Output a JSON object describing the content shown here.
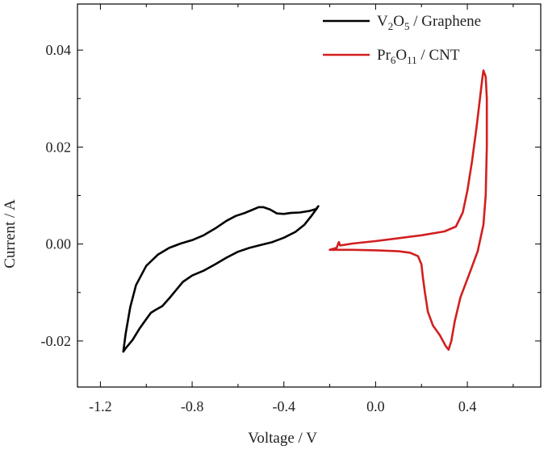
{
  "chart_data": {
    "type": "line",
    "title": "",
    "xlabel": "Voltage / V",
    "ylabel": "Current / A",
    "xlim": [
      -1.3,
      0.72
    ],
    "ylim": [
      -0.0295,
      0.0495
    ],
    "xticks": [
      -1.2,
      -0.8,
      -0.4,
      0.0,
      0.4
    ],
    "xtick_labels": [
      "-1.2",
      "-0.8",
      "-0.4",
      "0.0",
      "0.4"
    ],
    "yticks": [
      -0.02,
      0.0,
      0.02,
      0.04
    ],
    "ytick_labels": [
      "-0.02",
      "0.00",
      "0.02",
      "0.04"
    ],
    "grid": false,
    "legend": "top-right",
    "series": [
      {
        "name_parts": [
          [
            "V",
            ""
          ],
          [
            "2",
            "sub"
          ],
          [
            "O",
            ""
          ],
          [
            "5",
            "sub"
          ],
          [
            " / Graphene",
            ""
          ]
        ],
        "color": "#000000",
        "points": [
          [
            -1.1,
            -0.0222
          ],
          [
            -1.09,
            -0.0185
          ],
          [
            -1.07,
            -0.013
          ],
          [
            -1.045,
            -0.0085
          ],
          [
            -1.0,
            -0.0045
          ],
          [
            -0.95,
            -0.0022
          ],
          [
            -0.9,
            -0.0008
          ],
          [
            -0.85,
            0.0001
          ],
          [
            -0.8,
            0.0008
          ],
          [
            -0.75,
            0.0018
          ],
          [
            -0.7,
            0.0032
          ],
          [
            -0.65,
            0.0048
          ],
          [
            -0.61,
            0.0058
          ],
          [
            -0.57,
            0.0064
          ],
          [
            -0.54,
            0.007
          ],
          [
            -0.51,
            0.0076
          ],
          [
            -0.49,
            0.0076
          ],
          [
            -0.46,
            0.0071
          ],
          [
            -0.43,
            0.0063
          ],
          [
            -0.4,
            0.0062
          ],
          [
            -0.37,
            0.0064
          ],
          [
            -0.33,
            0.0065
          ],
          [
            -0.29,
            0.0068
          ],
          [
            -0.26,
            0.0072
          ],
          [
            -0.25,
            0.0078
          ],
          [
            -0.255,
            0.0074
          ],
          [
            -0.28,
            0.0058
          ],
          [
            -0.31,
            0.004
          ],
          [
            -0.35,
            0.0025
          ],
          [
            -0.4,
            0.0013
          ],
          [
            -0.45,
            0.0004
          ],
          [
            -0.5,
            -0.0002
          ],
          [
            -0.55,
            -0.0008
          ],
          [
            -0.6,
            -0.0016
          ],
          [
            -0.65,
            -0.0028
          ],
          [
            -0.7,
            -0.0042
          ],
          [
            -0.75,
            -0.0055
          ],
          [
            -0.8,
            -0.0065
          ],
          [
            -0.84,
            -0.0078
          ],
          [
            -0.87,
            -0.0095
          ],
          [
            -0.9,
            -0.0112
          ],
          [
            -0.93,
            -0.0128
          ],
          [
            -0.96,
            -0.0136
          ],
          [
            -0.98,
            -0.0142
          ],
          [
            -1.0,
            -0.0155
          ],
          [
            -1.03,
            -0.0175
          ],
          [
            -1.06,
            -0.0198
          ],
          [
            -1.09,
            -0.0215
          ],
          [
            -1.1,
            -0.0222
          ]
        ]
      },
      {
        "name_parts": [
          [
            "Pr",
            ""
          ],
          [
            "6",
            "sub"
          ],
          [
            "O",
            ""
          ],
          [
            "11",
            "sub"
          ],
          [
            " / CNT",
            ""
          ]
        ],
        "color": "#d21f1f",
        "points": [
          [
            -0.2,
            -0.0012
          ],
          [
            -0.17,
            -0.0008
          ],
          [
            -0.16,
            0.0004
          ],
          [
            -0.155,
            -0.0003
          ],
          [
            -0.14,
            -0.0002
          ],
          [
            -0.1,
            0.0001
          ],
          [
            0.0,
            0.0006
          ],
          [
            0.1,
            0.0012
          ],
          [
            0.2,
            0.0018
          ],
          [
            0.3,
            0.0026
          ],
          [
            0.35,
            0.0036
          ],
          [
            0.38,
            0.0065
          ],
          [
            0.4,
            0.011
          ],
          [
            0.42,
            0.017
          ],
          [
            0.44,
            0.024
          ],
          [
            0.455,
            0.03
          ],
          [
            0.465,
            0.034
          ],
          [
            0.47,
            0.0358
          ],
          [
            0.48,
            0.0345
          ],
          [
            0.485,
            0.03
          ],
          [
            0.485,
            0.02
          ],
          [
            0.48,
            0.01
          ],
          [
            0.47,
            0.004
          ],
          [
            0.445,
            -0.0015
          ],
          [
            0.41,
            -0.006
          ],
          [
            0.37,
            -0.011
          ],
          [
            0.345,
            -0.016
          ],
          [
            0.33,
            -0.02
          ],
          [
            0.318,
            -0.0218
          ],
          [
            0.305,
            -0.021
          ],
          [
            0.28,
            -0.0188
          ],
          [
            0.25,
            -0.0168
          ],
          [
            0.228,
            -0.014
          ],
          [
            0.215,
            -0.01
          ],
          [
            0.205,
            -0.0065
          ],
          [
            0.2,
            -0.0042
          ],
          [
            0.185,
            -0.0025
          ],
          [
            0.15,
            -0.0018
          ],
          [
            0.1,
            -0.0015
          ],
          [
            0.0,
            -0.0013
          ],
          [
            -0.1,
            -0.0012
          ],
          [
            -0.2,
            -0.0012
          ]
        ]
      }
    ]
  }
}
